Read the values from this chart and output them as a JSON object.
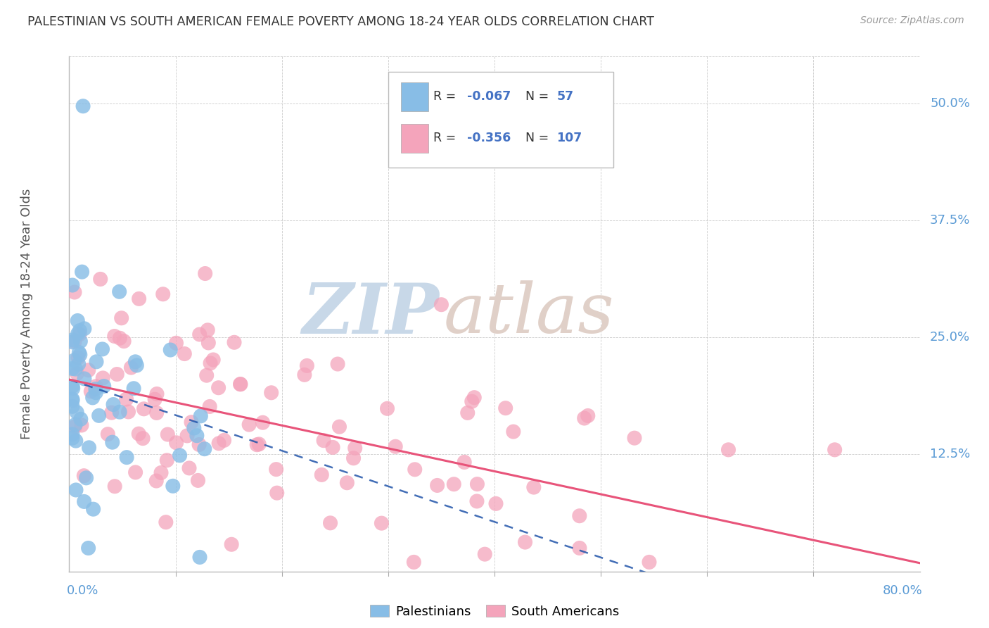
{
  "title": "PALESTINIAN VS SOUTH AMERICAN FEMALE POVERTY AMONG 18-24 YEAR OLDS CORRELATION CHART",
  "source": "Source: ZipAtlas.com",
  "ylabel": "Female Poverty Among 18-24 Year Olds",
  "xlim": [
    0.0,
    0.8
  ],
  "ylim": [
    0.0,
    0.55
  ],
  "ytick_values": [
    0.125,
    0.25,
    0.375,
    0.5
  ],
  "ytick_labels": [
    "12.5%",
    "25.0%",
    "37.5%",
    "50.0%"
  ],
  "palestinians_color": "#88bde6",
  "south_americans_color": "#f4a4bb",
  "palestinians_line_color": "#2255aa",
  "south_americans_line_color": "#e8547a",
  "axis_label_color": "#5b9bd5",
  "R_color": "#4472c4",
  "legend_R_pal": "-0.067",
  "legend_N_pal": "57",
  "legend_R_sa": "-0.356",
  "legend_N_sa": "107",
  "watermark_zip_color": "#c8d8e8",
  "watermark_atlas_color": "#e0d0c8",
  "background_color": "#ffffff",
  "grid_color": "#cccccc",
  "pal_intercept": 0.205,
  "pal_slope": -0.38,
  "sa_intercept": 0.205,
  "sa_slope": -0.245
}
